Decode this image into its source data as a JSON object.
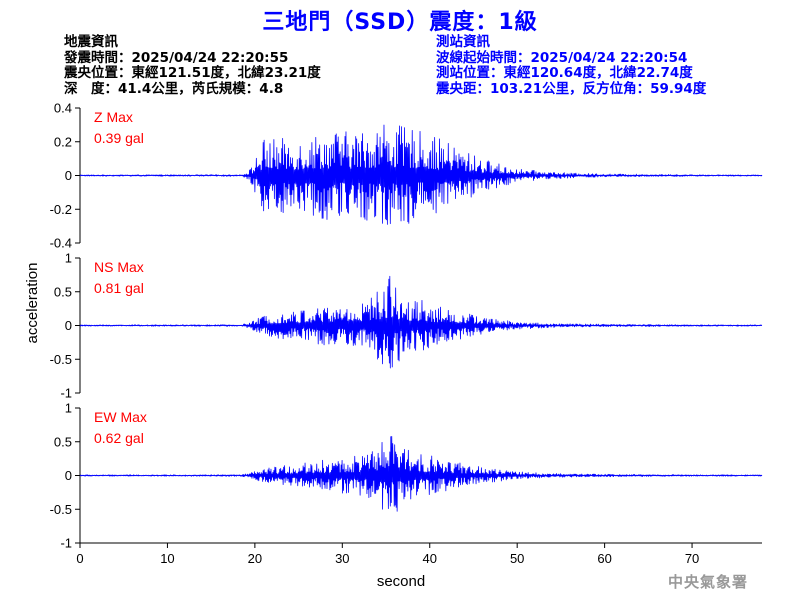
{
  "title": "三地門（SSD）震度：1級",
  "quake_info": {
    "heading": "地震資訊",
    "time": "發震時間：2025/04/24 22:20:55",
    "location": "震央位置：東經121.51度，北緯23.21度",
    "depth_mag": "深　度：41.4公里，芮氏規模：4.8"
  },
  "station_info": {
    "heading": "測站資訊",
    "start_time": "波線起始時間：2025/04/24 22:20:54",
    "location": "測站位置：東經120.64度，北緯22.74度",
    "distance": "震央距：103.21公里，反方位角：59.94度"
  },
  "watermark": "中央氣象署",
  "colors": {
    "title": "#0000ff",
    "trace": "#0000ff",
    "max_label": "#ff0000",
    "axis": "#000000",
    "watermark": "#999999"
  },
  "chart_data": {
    "type": "line",
    "xlabel": "second",
    "ylabel": "acceleration",
    "xlim": [
      0,
      78
    ],
    "xticks": [
      0,
      10,
      20,
      30,
      40,
      50,
      60,
      70
    ],
    "panels": [
      {
        "name": "Z",
        "max_label": "Z Max",
        "max_value": "0.39 gal",
        "ylim": [
          -0.4,
          0.4
        ],
        "yticks": [
          -0.4,
          -0.2,
          0,
          0.2,
          0.4
        ],
        "ytick_labels": [
          "-0.4",
          "-0.2",
          "0",
          "0.2",
          "0.4"
        ],
        "envelope": {
          "x": [
            0,
            18.5,
            19.5,
            21,
            23,
            25,
            27,
            29,
            31,
            33,
            35,
            36,
            38,
            40,
            42,
            44,
            46,
            48,
            50,
            53,
            56,
            60,
            65,
            70,
            78
          ],
          "amp": [
            0.004,
            0.005,
            0.04,
            0.22,
            0.22,
            0.22,
            0.25,
            0.27,
            0.26,
            0.28,
            0.34,
            0.3,
            0.28,
            0.24,
            0.2,
            0.15,
            0.1,
            0.07,
            0.04,
            0.025,
            0.015,
            0.01,
            0.007,
            0.005,
            0.004
          ]
        }
      },
      {
        "name": "NS",
        "max_label": "NS Max",
        "max_value": "0.81 gal",
        "ylim": [
          -1,
          1
        ],
        "yticks": [
          -1,
          -0.5,
          0,
          0.5,
          1
        ],
        "ytick_labels": [
          "-1",
          "-0.5",
          "0",
          "0.5",
          "1"
        ],
        "envelope": {
          "x": [
            0,
            18.5,
            19.5,
            21,
            23,
            25,
            27,
            29,
            31,
            33,
            34.5,
            35.5,
            37,
            39,
            41,
            43,
            45,
            47,
            50,
            53,
            56,
            60,
            65,
            70,
            78
          ],
          "amp": [
            0.01,
            0.012,
            0.05,
            0.15,
            0.2,
            0.22,
            0.28,
            0.3,
            0.3,
            0.38,
            0.6,
            0.78,
            0.45,
            0.4,
            0.28,
            0.22,
            0.17,
            0.1,
            0.06,
            0.035,
            0.025,
            0.02,
            0.015,
            0.012,
            0.01
          ]
        }
      },
      {
        "name": "EW",
        "max_label": "EW Max",
        "max_value": "0.62 gal",
        "ylim": [
          -1,
          1
        ],
        "yticks": [
          -1,
          -0.5,
          0,
          0.5,
          1
        ],
        "ytick_labels": [
          "-1",
          "-0.5",
          "0",
          "0.5",
          "1"
        ],
        "envelope": {
          "x": [
            0,
            18.5,
            19.5,
            21,
            23,
            25,
            27,
            29,
            31,
            33,
            34.5,
            35.5,
            37,
            39,
            41,
            43,
            45,
            47,
            50,
            53,
            56,
            60,
            65,
            70,
            78
          ],
          "amp": [
            0.01,
            0.012,
            0.04,
            0.1,
            0.14,
            0.18,
            0.22,
            0.25,
            0.28,
            0.33,
            0.5,
            0.62,
            0.45,
            0.35,
            0.26,
            0.2,
            0.15,
            0.1,
            0.06,
            0.035,
            0.025,
            0.02,
            0.015,
            0.012,
            0.01
          ]
        }
      }
    ]
  }
}
